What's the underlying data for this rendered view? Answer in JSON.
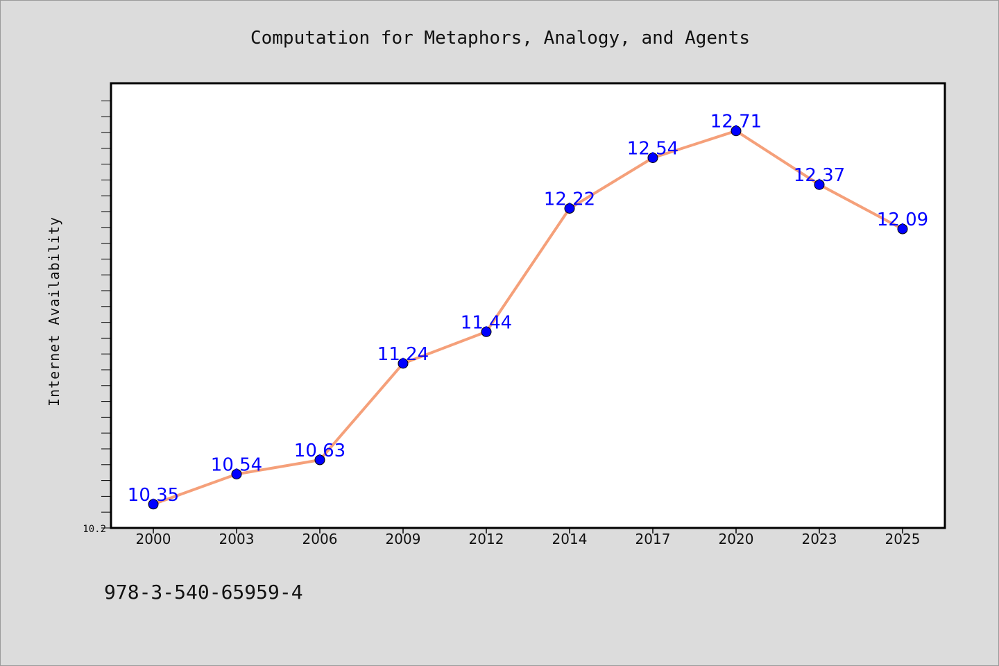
{
  "chart_data": {
    "type": "line",
    "title": "Computation for Metaphors, Analogy, and Agents",
    "xlabel": "",
    "ylabel": "Internet Availability",
    "categories": [
      "2000",
      "2003",
      "2006",
      "2009",
      "2012",
      "2014",
      "2017",
      "2020",
      "2023",
      "2025"
    ],
    "series": [
      {
        "values": [
          10.35,
          10.54,
          10.63,
          11.24,
          11.44,
          12.22,
          12.54,
          12.71,
          12.37,
          12.09
        ],
        "data_labels": [
          "10.35",
          "10.54",
          "10.63",
          "11.24",
          "11.44",
          "12.22",
          "12.54",
          "12.71",
          "12.37",
          "12.09"
        ]
      }
    ],
    "ylim": [
      10.2,
      13.0
    ],
    "y_tick_labels": [
      "10.2"
    ],
    "grid": false,
    "legend": "none",
    "line_color": "#f5a07a",
    "marker_color": "#0000ff",
    "label_color": "#0000ff",
    "plot_background": "#ffffff",
    "figure_background": "#dcdcdc"
  },
  "footnote": "978-3-540-65959-4"
}
